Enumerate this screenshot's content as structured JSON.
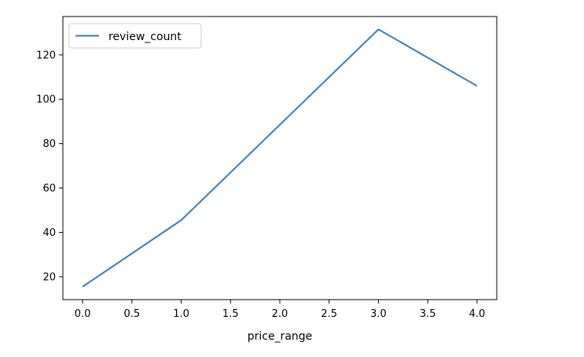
{
  "chart_data": {
    "type": "line",
    "x": [
      0,
      1,
      3,
      4
    ],
    "series": [
      {
        "name": "review_count",
        "values": [
          15.5,
          45.5,
          131.5,
          106
        ],
        "color": "#3a7cbf"
      }
    ],
    "xlabel": "price_range",
    "ylabel": "",
    "xlim": [
      -0.2,
      4.2
    ],
    "ylim": [
      9.7,
      137.3
    ],
    "xticks": [
      0,
      0.5,
      1,
      1.5,
      2,
      2.5,
      3,
      3.5,
      4
    ],
    "xtick_labels": [
      "0.0",
      "0.5",
      "1.0",
      "1.5",
      "2.0",
      "2.5",
      "3.0",
      "3.5",
      "4.0"
    ],
    "yticks": [
      20,
      40,
      60,
      80,
      100,
      120
    ],
    "ytick_labels": [
      "20",
      "40",
      "60",
      "80",
      "100",
      "120"
    ],
    "grid": false,
    "legend_position": "top-left"
  }
}
